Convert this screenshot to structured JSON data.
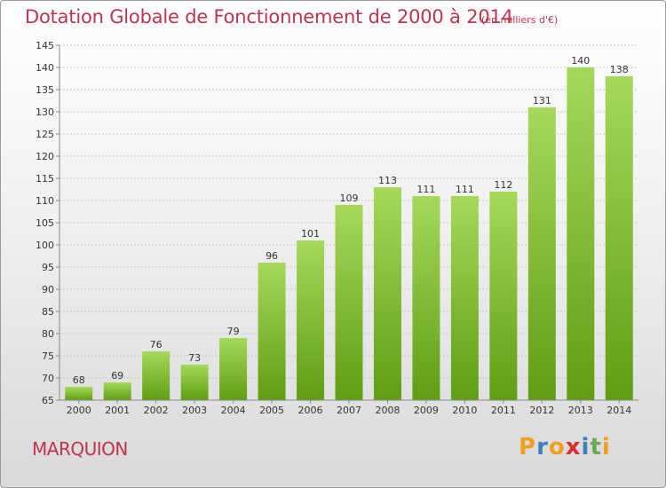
{
  "title": "Dotation Globale de Fonctionnement de 2000 à 2014",
  "subtitle": "(en milliers d'€)",
  "commune": "MARQUION",
  "logo": {
    "letters": [
      "P",
      "r",
      "o",
      "x",
      "i",
      "t",
      "i"
    ],
    "colors": [
      "#f0a01e",
      "#3d7fc0",
      "#f0a01e",
      "#d9302c",
      "#3d7fc0",
      "#6aa84f",
      "#f0a01e"
    ]
  },
  "colors": {
    "bar_top": "#a6d95a",
    "bar_bottom": "#5f9e12",
    "title": "#c0334c"
  },
  "chart_data": {
    "type": "bar",
    "categories": [
      "2000",
      "2001",
      "2002",
      "2003",
      "2004",
      "2005",
      "2006",
      "2007",
      "2008",
      "2009",
      "2010",
      "2011",
      "2012",
      "2013",
      "2014"
    ],
    "values": [
      68,
      69,
      76,
      73,
      79,
      96,
      101,
      109,
      113,
      111,
      111,
      112,
      131,
      140,
      138
    ],
    "value_labels": [
      "68",
      "69",
      "76",
      "73",
      "79",
      "96",
      "101",
      "109",
      "113",
      "111",
      "111",
      "112",
      "131",
      "140",
      "138"
    ],
    "y_ticks": [
      "65",
      "70",
      "75",
      "80",
      "85",
      "90",
      "95",
      "100",
      "105",
      "110",
      "115",
      "120",
      "125",
      "130",
      "135",
      "140",
      "145"
    ],
    "ylim": [
      65,
      145
    ],
    "grid": true,
    "title": "Dotation Globale de Fonctionnement de 2000 à 2014"
  }
}
